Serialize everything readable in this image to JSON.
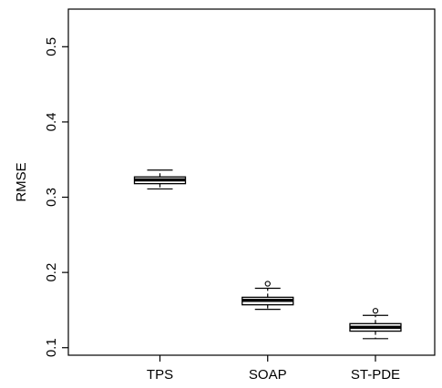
{
  "chart_data": {
    "type": "boxplot",
    "title": "",
    "xlabel": "",
    "ylabel": "RMSE",
    "ylim": [
      0.09,
      0.55
    ],
    "yticks": [
      0.1,
      0.2,
      0.3,
      0.4,
      0.5
    ],
    "ytick_labels": [
      "0.1",
      "0.2",
      "0.3",
      "0.4",
      "0.5"
    ],
    "grid": false,
    "categories": [
      "TPS",
      "SOAP",
      "ST-PDE"
    ],
    "boxes": [
      {
        "category": "TPS",
        "min": 0.311,
        "q1": 0.318,
        "median": 0.323,
        "q3": 0.327,
        "max": 0.336,
        "outliers": []
      },
      {
        "category": "SOAP",
        "min": 0.151,
        "q1": 0.157,
        "median": 0.163,
        "q3": 0.167,
        "max": 0.179,
        "outliers": [
          0.185
        ]
      },
      {
        "category": "ST-PDE",
        "min": 0.112,
        "q1": 0.122,
        "median": 0.127,
        "q3": 0.132,
        "max": 0.143,
        "outliers": [
          0.149
        ]
      }
    ]
  }
}
